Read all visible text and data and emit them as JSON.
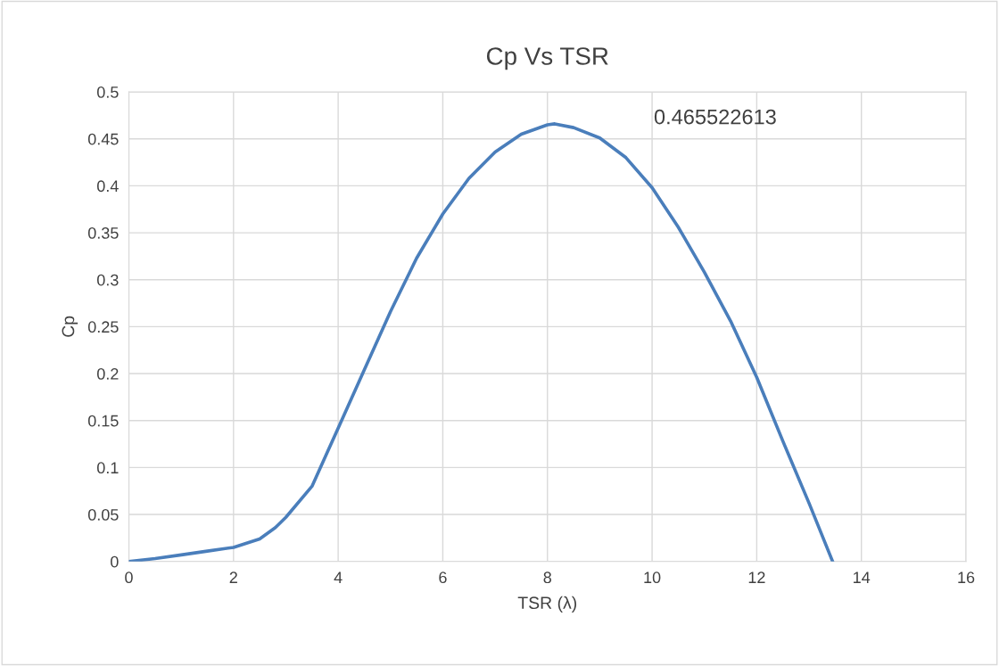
{
  "chart_data": {
    "type": "line",
    "title": "Cp Vs TSR",
    "xlabel": "TSR (λ)",
    "ylabel": "Cp",
    "x": [
      0,
      0.5,
      1,
      1.5,
      2,
      2.5,
      2.8,
      3,
      3.5,
      4,
      4.5,
      5,
      5.5,
      6,
      6.5,
      7,
      7.5,
      8,
      8.14,
      8.5,
      9,
      9.5,
      10,
      10.5,
      11,
      11.5,
      12,
      12.5,
      13,
      13.45
    ],
    "series": [
      {
        "color": "#4a7ebb",
        "values": [
          0,
          0.003,
          0.007,
          0.011,
          0.015,
          0.024,
          0.036,
          0.047,
          0.08,
          0.142,
          0.204,
          0.266,
          0.323,
          0.37,
          0.408,
          0.436,
          0.455,
          0.465,
          0.466,
          0.462,
          0.451,
          0.43,
          0.398,
          0.356,
          0.308,
          0.256,
          0.196,
          0.128,
          0.062,
          0
        ]
      }
    ],
    "annotations": [
      "0.465522613"
    ],
    "xlim": [
      0,
      16
    ],
    "xticks": [
      0,
      2,
      4,
      6,
      8,
      10,
      12,
      14,
      16
    ],
    "ylim": [
      0,
      0.5
    ],
    "yticks": [
      0,
      0.05,
      0.1,
      0.15,
      0.2,
      0.25,
      0.3,
      0.35,
      0.4,
      0.45,
      0.5
    ],
    "grid": true,
    "legend": false,
    "marker": "none",
    "line_style": "solid"
  }
}
